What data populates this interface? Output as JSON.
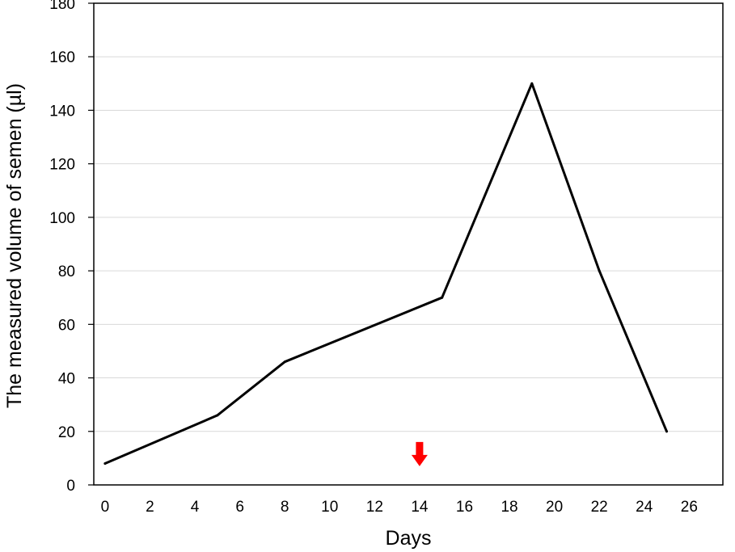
{
  "chart_data": {
    "type": "line",
    "xlabel": "Days",
    "ylabel": "The measured volume of semen (µl)",
    "xlim": [
      -0.5,
      27.5
    ],
    "ylim": [
      0,
      180
    ],
    "xticks": [
      0,
      2,
      4,
      6,
      8,
      10,
      12,
      14,
      16,
      18,
      20,
      22,
      24,
      26
    ],
    "yticks": [
      0,
      20,
      40,
      60,
      80,
      100,
      120,
      140,
      160,
      180
    ],
    "grid": "horizontal",
    "series": [
      {
        "color": "#000000",
        "x": [
          0,
          5,
          8,
          15,
          19,
          22,
          25
        ],
        "y": [
          8,
          26,
          46,
          70,
          150,
          80,
          20
        ]
      }
    ],
    "annotations": [
      {
        "type": "arrow-down",
        "x": 14,
        "y": 7,
        "color": "#ff0000"
      }
    ]
  }
}
